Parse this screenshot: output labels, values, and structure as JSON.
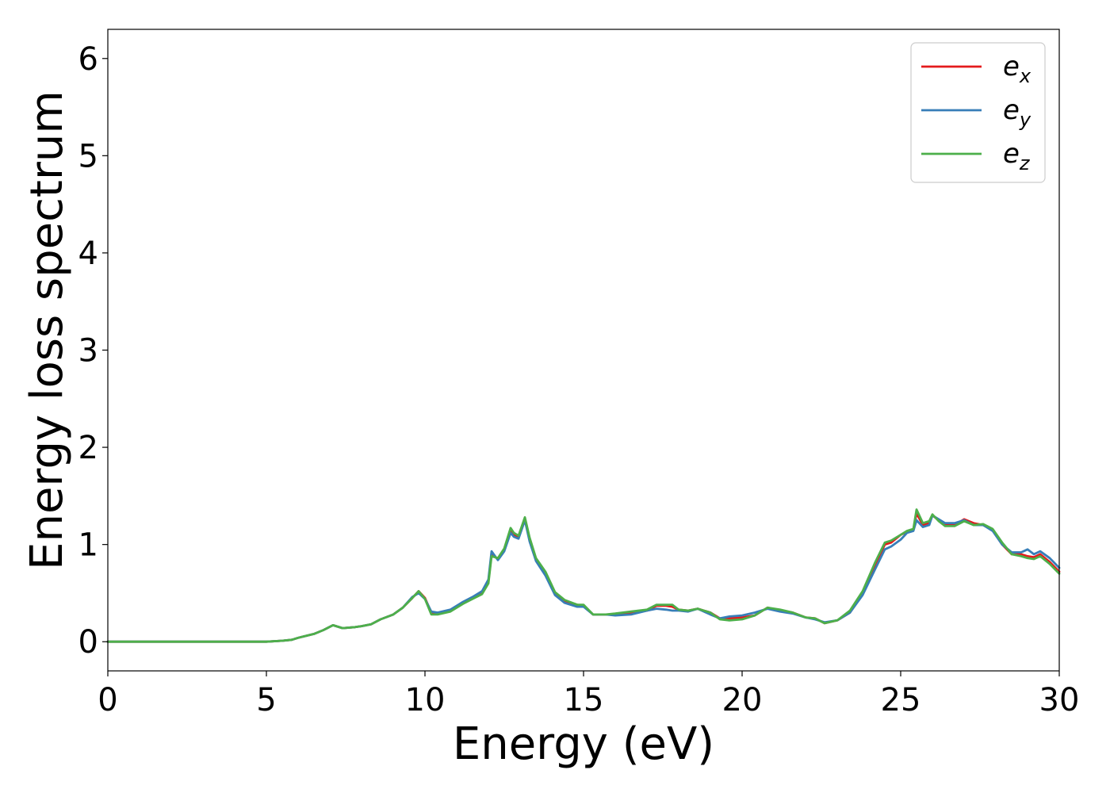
{
  "chart_data": {
    "type": "line",
    "xlabel": "Energy (eV)",
    "ylabel": "Energy loss spectrum",
    "xlim": [
      0,
      30
    ],
    "ylim": [
      -0.3,
      6.3
    ],
    "xticks": [
      0,
      5,
      10,
      15,
      20,
      25,
      30
    ],
    "yticks": [
      0,
      1,
      2,
      3,
      4,
      5,
      6
    ],
    "grid": false,
    "legend_position": "top-right",
    "series": [
      {
        "name": "e",
        "subscript": "x",
        "color": "#e41a1c",
        "x": [
          0,
          1,
          2,
          3,
          4,
          5,
          5.5,
          5.8,
          6.0,
          6.5,
          6.8,
          7.1,
          7.4,
          7.8,
          8.0,
          8.3,
          8.6,
          9.0,
          9.3,
          9.6,
          9.8,
          10.0,
          10.2,
          10.4,
          10.8,
          11.2,
          11.5,
          11.8,
          12.0,
          12.1,
          12.3,
          12.5,
          12.7,
          12.8,
          12.95,
          13.15,
          13.3,
          13.5,
          13.8,
          14.1,
          14.4,
          14.8,
          15.0,
          15.3,
          15.7,
          16.0,
          16.5,
          17.0,
          17.3,
          17.6,
          17.8,
          18.0,
          18.3,
          18.6,
          19.0,
          19.3,
          19.6,
          20.0,
          20.4,
          20.8,
          21.2,
          21.6,
          22.0,
          22.3,
          22.6,
          23.0,
          23.4,
          23.8,
          24.2,
          24.5,
          24.7,
          25.0,
          25.2,
          25.4,
          25.5,
          25.7,
          25.9,
          26.0,
          26.2,
          26.4,
          26.7,
          27.0,
          27.3,
          27.6,
          27.9,
          28.2,
          28.5,
          28.8,
          29.0,
          29.2,
          29.4,
          29.7,
          30.0
        ],
        "y": [
          0.0,
          0.0,
          0.0,
          0.0,
          0.0,
          0.0,
          0.01,
          0.02,
          0.04,
          0.08,
          0.12,
          0.17,
          0.14,
          0.15,
          0.16,
          0.18,
          0.23,
          0.28,
          0.35,
          0.45,
          0.52,
          0.45,
          0.3,
          0.29,
          0.32,
          0.4,
          0.45,
          0.5,
          0.62,
          0.9,
          0.85,
          0.95,
          1.15,
          1.1,
          1.08,
          1.27,
          1.05,
          0.85,
          0.7,
          0.5,
          0.42,
          0.38,
          0.37,
          0.28,
          0.28,
          0.28,
          0.3,
          0.32,
          0.37,
          0.37,
          0.36,
          0.33,
          0.32,
          0.34,
          0.3,
          0.24,
          0.24,
          0.25,
          0.27,
          0.35,
          0.32,
          0.3,
          0.25,
          0.24,
          0.19,
          0.22,
          0.3,
          0.5,
          0.8,
          1.0,
          1.02,
          1.1,
          1.13,
          1.15,
          1.32,
          1.2,
          1.22,
          1.3,
          1.25,
          1.2,
          1.2,
          1.26,
          1.22,
          1.2,
          1.15,
          1.0,
          0.9,
          0.9,
          0.88,
          0.87,
          0.9,
          0.82,
          0.72
        ]
      },
      {
        "name": "e",
        "subscript": "y",
        "color": "#377eb8",
        "x": [
          0,
          1,
          2,
          3,
          4,
          5,
          5.5,
          5.8,
          6.0,
          6.5,
          6.8,
          7.1,
          7.4,
          7.8,
          8.0,
          8.3,
          8.6,
          9.0,
          9.3,
          9.6,
          9.8,
          10.0,
          10.2,
          10.4,
          10.8,
          11.2,
          11.5,
          11.8,
          12.0,
          12.1,
          12.3,
          12.5,
          12.7,
          12.8,
          12.95,
          13.15,
          13.3,
          13.5,
          13.8,
          14.1,
          14.4,
          14.8,
          15.0,
          15.3,
          15.7,
          16.0,
          16.5,
          17.0,
          17.3,
          17.6,
          17.8,
          18.0,
          18.3,
          18.6,
          19.0,
          19.3,
          19.6,
          20.0,
          20.4,
          20.8,
          21.2,
          21.6,
          22.0,
          22.3,
          22.6,
          23.0,
          23.4,
          23.8,
          24.2,
          24.5,
          24.7,
          25.0,
          25.2,
          25.4,
          25.5,
          25.7,
          25.9,
          26.0,
          26.2,
          26.4,
          26.7,
          27.0,
          27.3,
          27.6,
          27.9,
          28.2,
          28.5,
          28.8,
          29.0,
          29.2,
          29.4,
          29.7,
          30.0
        ],
        "y": [
          0.0,
          0.0,
          0.0,
          0.0,
          0.0,
          0.0,
          0.01,
          0.02,
          0.04,
          0.08,
          0.12,
          0.17,
          0.14,
          0.15,
          0.16,
          0.18,
          0.23,
          0.28,
          0.35,
          0.46,
          0.5,
          0.44,
          0.31,
          0.3,
          0.33,
          0.41,
          0.46,
          0.52,
          0.64,
          0.93,
          0.84,
          0.93,
          1.12,
          1.08,
          1.06,
          1.25,
          1.03,
          0.83,
          0.68,
          0.48,
          0.4,
          0.36,
          0.36,
          0.28,
          0.28,
          0.27,
          0.28,
          0.32,
          0.34,
          0.33,
          0.32,
          0.32,
          0.31,
          0.34,
          0.28,
          0.24,
          0.26,
          0.27,
          0.3,
          0.34,
          0.31,
          0.29,
          0.25,
          0.23,
          0.2,
          0.22,
          0.3,
          0.48,
          0.75,
          0.95,
          0.98,
          1.05,
          1.12,
          1.14,
          1.25,
          1.18,
          1.2,
          1.3,
          1.26,
          1.22,
          1.22,
          1.25,
          1.2,
          1.2,
          1.14,
          1.0,
          0.92,
          0.92,
          0.95,
          0.9,
          0.93,
          0.86,
          0.76
        ]
      },
      {
        "name": "e",
        "subscript": "z",
        "color": "#4daf4a",
        "x": [
          0,
          1,
          2,
          3,
          4,
          5,
          5.5,
          5.8,
          6.0,
          6.5,
          6.8,
          7.1,
          7.4,
          7.8,
          8.0,
          8.3,
          8.6,
          9.0,
          9.3,
          9.6,
          9.8,
          10.0,
          10.2,
          10.4,
          10.8,
          11.2,
          11.5,
          11.8,
          12.0,
          12.1,
          12.3,
          12.5,
          12.7,
          12.8,
          12.95,
          13.15,
          13.3,
          13.5,
          13.8,
          14.1,
          14.4,
          14.8,
          15.0,
          15.3,
          15.7,
          16.0,
          16.5,
          17.0,
          17.3,
          17.6,
          17.8,
          18.0,
          18.3,
          18.6,
          19.0,
          19.3,
          19.6,
          20.0,
          20.4,
          20.8,
          21.2,
          21.6,
          22.0,
          22.3,
          22.6,
          23.0,
          23.4,
          23.8,
          24.2,
          24.5,
          24.7,
          25.0,
          25.2,
          25.4,
          25.5,
          25.7,
          25.9,
          26.0,
          26.2,
          26.4,
          26.7,
          27.0,
          27.3,
          27.6,
          27.9,
          28.2,
          28.5,
          28.8,
          29.0,
          29.2,
          29.4,
          29.7,
          30.0
        ],
        "y": [
          0.0,
          0.0,
          0.0,
          0.0,
          0.0,
          0.0,
          0.01,
          0.02,
          0.04,
          0.08,
          0.12,
          0.17,
          0.14,
          0.15,
          0.16,
          0.18,
          0.23,
          0.28,
          0.35,
          0.45,
          0.52,
          0.44,
          0.28,
          0.28,
          0.31,
          0.39,
          0.44,
          0.49,
          0.6,
          0.88,
          0.86,
          0.96,
          1.17,
          1.12,
          1.09,
          1.28,
          1.07,
          0.86,
          0.72,
          0.51,
          0.43,
          0.38,
          0.38,
          0.28,
          0.28,
          0.29,
          0.31,
          0.33,
          0.38,
          0.38,
          0.38,
          0.33,
          0.32,
          0.34,
          0.3,
          0.23,
          0.22,
          0.23,
          0.27,
          0.35,
          0.33,
          0.3,
          0.25,
          0.24,
          0.19,
          0.22,
          0.32,
          0.52,
          0.82,
          1.02,
          1.04,
          1.1,
          1.14,
          1.16,
          1.36,
          1.22,
          1.24,
          1.31,
          1.24,
          1.19,
          1.19,
          1.24,
          1.2,
          1.21,
          1.16,
          1.02,
          0.9,
          0.88,
          0.86,
          0.85,
          0.88,
          0.8,
          0.7
        ]
      }
    ]
  }
}
